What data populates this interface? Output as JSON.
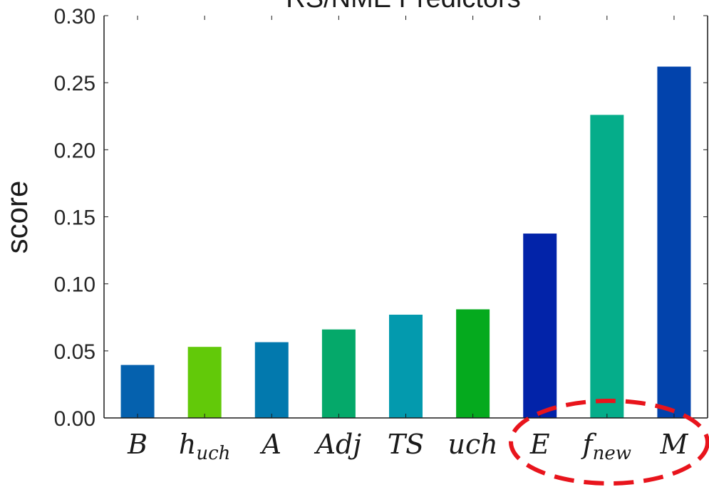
{
  "chart_data": {
    "type": "bar",
    "title": "RS/NME Predictors",
    "ylabel": "score",
    "xlabel": "",
    "ylim": [
      0,
      0.3
    ],
    "yticks": [
      "0.00",
      "0.05",
      "0.10",
      "0.15",
      "0.20",
      "0.25",
      "0.30"
    ],
    "grid": false,
    "categories": [
      {
        "main": "B",
        "sub": ""
      },
      {
        "main": "h",
        "sub": "uch"
      },
      {
        "main": "A",
        "sub": ""
      },
      {
        "main": "Adj",
        "sub": ""
      },
      {
        "main": "TS",
        "sub": ""
      },
      {
        "main": "uch",
        "sub": ""
      },
      {
        "main": "E",
        "sub": ""
      },
      {
        "main": "f",
        "sub": "new"
      },
      {
        "main": "M",
        "sub": ""
      }
    ],
    "values": [
      0.0395,
      0.053,
      0.0565,
      0.066,
      0.077,
      0.081,
      0.1375,
      0.226,
      0.262
    ],
    "colors": [
      "#0561ae",
      "#62c909",
      "#0279ae",
      "#05a96a",
      "#039aae",
      "#05aa1e",
      "#0223a9",
      "#05ad8a",
      "#0243ac"
    ],
    "annotation": {
      "type": "dashed-ellipse",
      "color": "#e8141c",
      "highlights": [
        "E",
        "f",
        "M"
      ]
    }
  }
}
